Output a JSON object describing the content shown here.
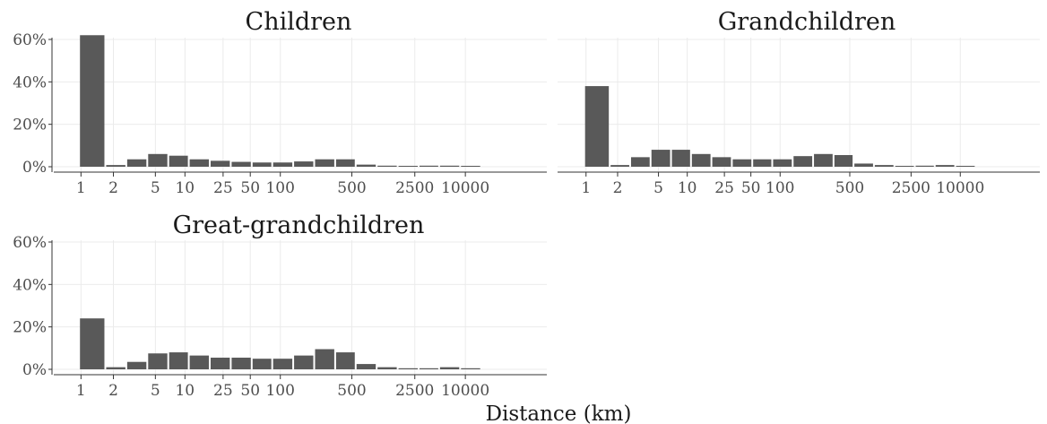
{
  "figure": {
    "xlabel": "Distance (km)",
    "bar_color": "#595959",
    "grid_color": "#ebebeb"
  },
  "chart_data": [
    {
      "type": "bar",
      "title": "Children",
      "x_ticks": [
        "1",
        "2",
        "5",
        "10",
        "25",
        "50",
        "100",
        "500",
        "2500",
        "10000"
      ],
      "y_ticks": [
        "0%",
        "20%",
        "40%",
        "60%"
      ],
      "ylim": [
        0,
        65
      ],
      "values": [
        62.0,
        0.8,
        3.5,
        6.0,
        5.2,
        3.5,
        2.8,
        2.3,
        2.0,
        2.0,
        2.5,
        3.5,
        3.5,
        1.0,
        0.5,
        0.3,
        0.5,
        0.5,
        0.3
      ]
    },
    {
      "type": "bar",
      "title": "Grandchildren",
      "x_ticks": [
        "1",
        "2",
        "5",
        "10",
        "25",
        "50",
        "100",
        "500",
        "2500",
        "10000"
      ],
      "y_ticks": [
        "0%",
        "20%",
        "40%",
        "60%"
      ],
      "ylim": [
        0,
        65
      ],
      "values": [
        38.0,
        0.8,
        4.5,
        8.0,
        8.0,
        6.0,
        4.5,
        3.5,
        3.5,
        3.5,
        5.0,
        6.0,
        5.5,
        1.5,
        0.8,
        0.3,
        0.5,
        0.8,
        0.3
      ]
    },
    {
      "type": "bar",
      "title": "Great-grandchildren",
      "x_ticks": [
        "1",
        "2",
        "5",
        "10",
        "25",
        "50",
        "100",
        "500",
        "2500",
        "10000"
      ],
      "y_ticks": [
        "0%",
        "20%",
        "40%",
        "60%"
      ],
      "ylim": [
        0,
        65
      ],
      "values": [
        24.0,
        1.0,
        3.5,
        7.5,
        8.0,
        6.5,
        5.5,
        5.5,
        5.0,
        5.0,
        6.5,
        9.5,
        8.0,
        2.5,
        1.0,
        0.5,
        0.5,
        1.0,
        0.5
      ]
    }
  ]
}
